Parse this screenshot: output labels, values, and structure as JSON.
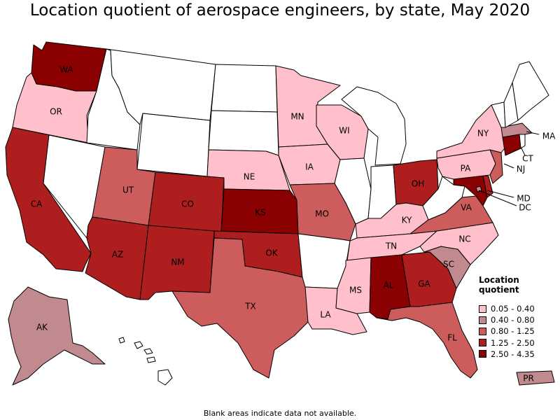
{
  "title": "Location quotient of aerospace engineers, by state, May 2020",
  "footnote": "Blank areas indicate data not available.",
  "legend": {
    "title": "Location quotient",
    "items": [
      {
        "label": "0.05 - 0.40",
        "color": "#FFC0CB"
      },
      {
        "label": "0.40 - 0.80",
        "color": "#C08A8E"
      },
      {
        "label": "0.80 - 1.25",
        "color": "#CD5C5C"
      },
      {
        "label": "1.25 - 2.50",
        "color": "#AE1E1E"
      },
      {
        "label": "2.50 - 4.35",
        "color": "#8B0000"
      }
    ]
  },
  "states": {
    "WA": {
      "class": 4
    },
    "OR": {
      "class": 0
    },
    "CA": {
      "class": 3
    },
    "NV": {
      "class": null
    },
    "ID": {
      "class": null
    },
    "MT": {
      "class": null
    },
    "WY": {
      "class": null
    },
    "UT": {
      "class": 2
    },
    "AZ": {
      "class": 3
    },
    "CO": {
      "class": 3
    },
    "NM": {
      "class": 3
    },
    "ND": {
      "class": null
    },
    "SD": {
      "class": null
    },
    "NE": {
      "class": 0
    },
    "KS": {
      "class": 4
    },
    "OK": {
      "class": 3
    },
    "TX": {
      "class": 2
    },
    "MN": {
      "class": 0
    },
    "IA": {
      "class": 0
    },
    "MO": {
      "class": 2
    },
    "AR": {
      "class": null
    },
    "LA": {
      "class": 0
    },
    "WI": {
      "class": 0
    },
    "IL": {
      "class": null
    },
    "MI": {
      "class": null
    },
    "IN": {
      "class": null
    },
    "OH": {
      "class": 3
    },
    "KY": {
      "class": 0
    },
    "TN": {
      "class": 0
    },
    "MS": {
      "class": 0
    },
    "AL": {
      "class": 4
    },
    "GA": {
      "class": 3
    },
    "FL": {
      "class": 2
    },
    "SC": {
      "class": 1
    },
    "NC": {
      "class": 0
    },
    "VA": {
      "class": 2
    },
    "WV": {
      "class": null
    },
    "MD": {
      "class": 4
    },
    "DE": {
      "class": 3
    },
    "DC": {
      "class": 1
    },
    "PA": {
      "class": 0
    },
    "NJ": {
      "class": 2
    },
    "NY": {
      "class": 0
    },
    "CT": {
      "class": 4
    },
    "RI": {
      "class": null
    },
    "MA": {
      "class": 1
    },
    "VT": {
      "class": null
    },
    "NH": {
      "class": null
    },
    "ME": {
      "class": null
    },
    "AK": {
      "class": 1
    },
    "HI": {
      "class": null
    },
    "PR": {
      "class": 1
    }
  },
  "labels": [
    "WA",
    "OR",
    "CA",
    "UT",
    "CO",
    "AZ",
    "NM",
    "KS",
    "OK",
    "TX",
    "NE",
    "MN",
    "IA",
    "MO",
    "WI",
    "NY",
    "PA",
    "OH",
    "KY",
    "TN",
    "MS",
    "AL",
    "GA",
    "LA",
    "FL",
    "SC",
    "NC",
    "VA",
    "NJ",
    "CT",
    "MA",
    "MD",
    "DC",
    "AK",
    "PR"
  ]
}
